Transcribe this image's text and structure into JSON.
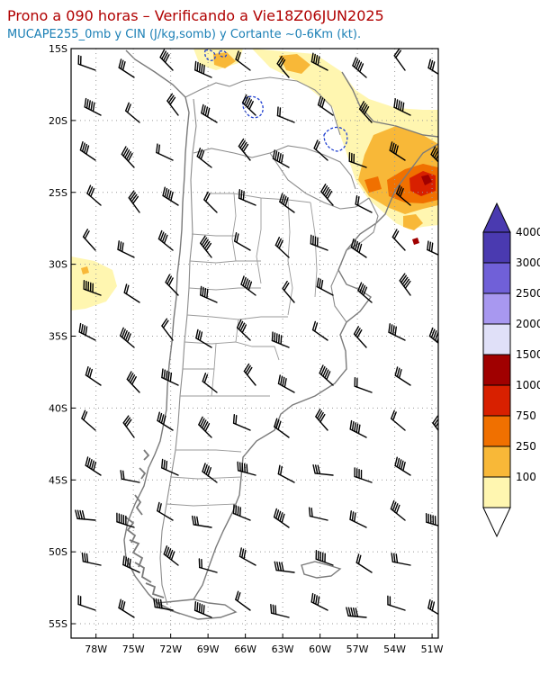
{
  "header": {
    "title": "Prono a 090 horas – Verificando a Vie18Z06JUN2025",
    "subtitle": "MUCAPE255_0mb y CIN (J/kg,somb) y Cortante ~0-6Km (kt)."
  },
  "map": {
    "lat_labels": [
      "15S",
      "20S",
      "25S",
      "30S",
      "35S",
      "40S",
      "45S",
      "50S",
      "55S"
    ],
    "lon_labels": [
      "78W",
      "75W",
      "72W",
      "69W",
      "66W",
      "63W",
      "60W",
      "57W",
      "54W",
      "51W"
    ],
    "lat_values": [
      -15,
      -20,
      -25,
      -30,
      -35,
      -40,
      -45,
      -50,
      -55
    ],
    "lon_values": [
      -78,
      -75,
      -72,
      -69,
      -66,
      -63,
      -60,
      -57,
      -54,
      -51
    ],
    "lat_range": [
      -56,
      -15
    ],
    "lon_range": [
      -80,
      -50.5
    ],
    "colors": {
      "coast": "#7a7a7a",
      "border": "#8c8c8c",
      "grid": "#9a9a9a",
      "barb": "#000000",
      "cin": "#2040d0"
    }
  },
  "colorbar": {
    "labels": [
      "4000",
      "3000",
      "2500",
      "2000",
      "1500",
      "1000",
      "750",
      "250",
      "100"
    ],
    "colors": [
      "#4a3ab0",
      "#7060d8",
      "#a898f0",
      "#e0e0f8",
      "#a00000",
      "#d82000",
      "#f07000",
      "#f8b838",
      "#fff6b0"
    ]
  }
}
